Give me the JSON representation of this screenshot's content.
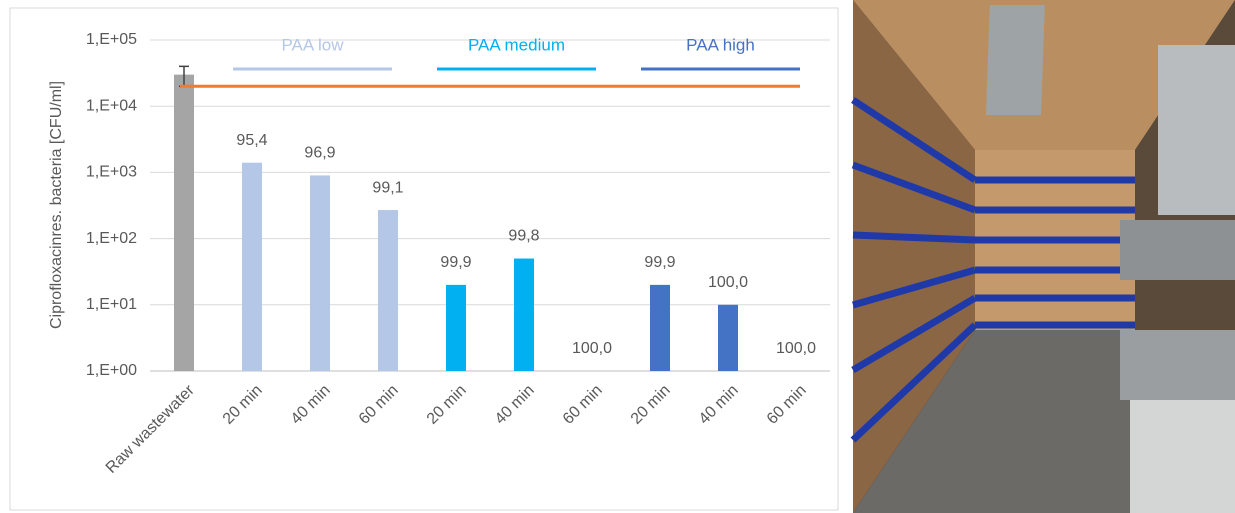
{
  "chart_data": {
    "type": "bar",
    "log_scale": true,
    "grid": true,
    "y_label": "Ciprofloxacinres. bacteria [CFU/ml]",
    "ylim": [
      1,
      100000
    ],
    "yticks": [
      {
        "value": 1,
        "label": "1,E+00"
      },
      {
        "value": 10,
        "label": "1,E+01"
      },
      {
        "value": 100,
        "label": "1,E+02"
      },
      {
        "value": 1000,
        "label": "1,E+03"
      },
      {
        "value": 10000,
        "label": "1,E+04"
      },
      {
        "value": 100000,
        "label": "1,E+05"
      }
    ],
    "reference_line": {
      "value": 20000,
      "color": "#ed7d31"
    },
    "groups": [
      {
        "name": null,
        "color": "#a5a5a5",
        "categories": [
          "Raw wastewater"
        ],
        "values": [
          30000
        ],
        "errors": [
          10000
        ]
      },
      {
        "name": "PAA low",
        "color": "#b4c7e7",
        "categories": [
          "20 min",
          "40 min",
          "60 min"
        ],
        "values": [
          1400,
          900,
          270
        ],
        "reduction_labels": [
          "95,4",
          "96,9",
          "99,1"
        ]
      },
      {
        "name": "PAA medium",
        "color": "#00b0f0",
        "categories": [
          "20 min",
          "40 min",
          "60 min"
        ],
        "values": [
          20,
          50,
          null
        ],
        "reduction_labels": [
          "99,9",
          "99,8",
          "100,0"
        ]
      },
      {
        "name": "PAA high",
        "color": "#4472c4",
        "categories": [
          "20 min",
          "40 min",
          "60 min"
        ],
        "values": [
          20,
          10,
          null
        ],
        "reduction_labels": [
          "99,9",
          "100,0",
          "100,0"
        ]
      }
    ]
  }
}
